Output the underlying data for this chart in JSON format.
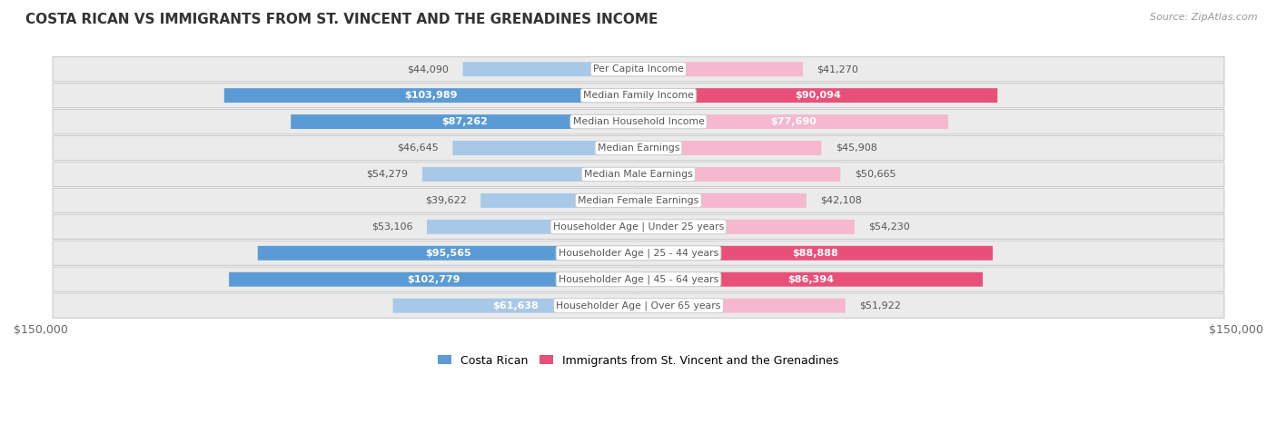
{
  "title": "COSTA RICAN VS IMMIGRANTS FROM ST. VINCENT AND THE GRENADINES INCOME",
  "source": "Source: ZipAtlas.com",
  "categories": [
    "Per Capita Income",
    "Median Family Income",
    "Median Household Income",
    "Median Earnings",
    "Median Male Earnings",
    "Median Female Earnings",
    "Householder Age | Under 25 years",
    "Householder Age | 25 - 44 years",
    "Householder Age | 45 - 64 years",
    "Householder Age | Over 65 years"
  ],
  "costa_rican": [
    44090,
    103989,
    87262,
    46645,
    54279,
    39622,
    53106,
    95565,
    102779,
    61638
  ],
  "immigrants": [
    41270,
    90094,
    77690,
    45908,
    50665,
    42108,
    54230,
    88888,
    86394,
    51922
  ],
  "costa_rican_labels": [
    "$44,090",
    "$103,989",
    "$87,262",
    "$46,645",
    "$54,279",
    "$39,622",
    "$53,106",
    "$95,565",
    "$102,779",
    "$61,638"
  ],
  "immigrants_labels": [
    "$41,270",
    "$90,094",
    "$77,690",
    "$45,908",
    "$50,665",
    "$42,108",
    "$54,230",
    "$88,888",
    "$86,394",
    "$51,922"
  ],
  "max_value": 150000,
  "bar_color_blue_light": "#a8c8e8",
  "bar_color_blue_dark": "#5b9bd5",
  "bar_color_pink_light": "#f5b8ce",
  "bar_color_pink_dark": "#e8507a",
  "background_row": "#ebebeb",
  "row_border": "#dddddd",
  "legend_costa_rican": "Costa Rican",
  "legend_immigrants": "Immigrants from St. Vincent and the Grenadines",
  "axis_label": "$150,000",
  "inside_label_threshold": 60000,
  "label_color_outside": "#555555",
  "label_color_inside": "#ffffff",
  "center_label_color": "#555555",
  "title_color": "#333333",
  "source_color": "#999999"
}
